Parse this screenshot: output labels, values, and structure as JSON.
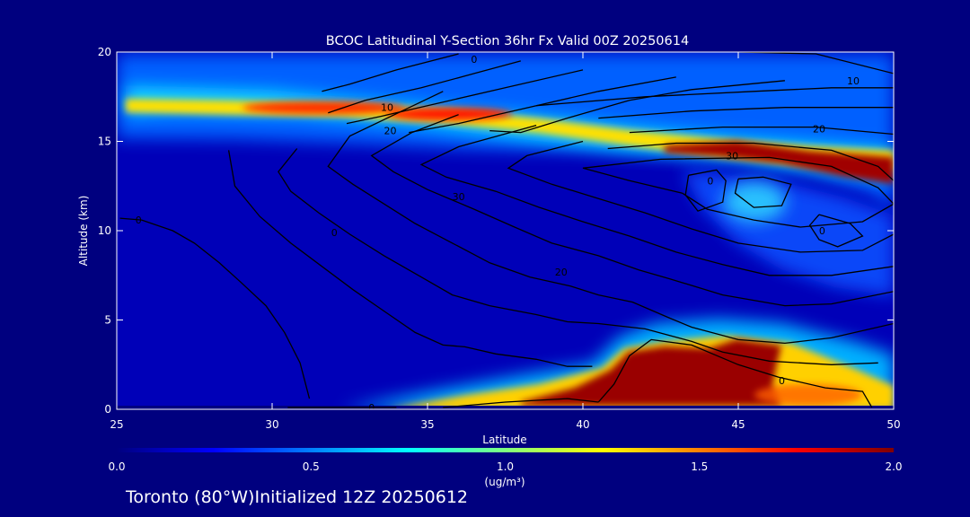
{
  "chart_data": {
    "type": "heatmap",
    "title": "BCOC Latitudinal Y-Section 36hr  Fx Valid 00Z 20250614",
    "xlabel": "Latitude",
    "ylabel": "Altitude (km)",
    "xlim": [
      25,
      50
    ],
    "ylim": [
      0,
      20
    ],
    "x_ticks": [
      "25",
      "30",
      "35",
      "40",
      "45",
      "50"
    ],
    "y_ticks": [
      "0",
      "5",
      "10",
      "15",
      "20"
    ],
    "colorbar": {
      "ticks": [
        "0.0",
        "0.5",
        "1.0",
        "1.5",
        "2.0"
      ],
      "range": [
        0,
        2
      ],
      "unit": "(ug/m³)"
    },
    "concentration_features": [
      {
        "lat": 31.5,
        "alt": 17.8,
        "value": 1.2
      },
      {
        "lat": 34.5,
        "alt": 16.9,
        "value": 1.7
      },
      {
        "lat": 37.5,
        "alt": 16.2,
        "value": 1.6
      },
      {
        "lat": 42.5,
        "alt": 15.3,
        "value": 1.2
      },
      {
        "lat": 46.5,
        "alt": 14.5,
        "value": 2.0
      },
      {
        "lat": 49.5,
        "alt": 13.3,
        "value": 2.0
      },
      {
        "lat": 43.5,
        "alt": 2.8,
        "value": 2.0
      },
      {
        "lat": 45.5,
        "alt": 1.8,
        "value": 2.0
      },
      {
        "lat": 41.2,
        "alt": 1.0,
        "value": 1.8
      },
      {
        "lat": 38.5,
        "alt": 0.6,
        "value": 1.2
      },
      {
        "lat": 36.0,
        "alt": 0.35,
        "value": 0.9
      },
      {
        "lat": 48.5,
        "alt": 1.0,
        "value": 1.2
      },
      {
        "lat": 41.7,
        "alt": 4.3,
        "value": 0.8
      },
      {
        "lat": 44.5,
        "alt": 11.5,
        "value": 0.85
      }
    ],
    "contour_labels": [
      {
        "text": "0",
        "lat": 36.5,
        "alt": 19.6
      },
      {
        "text": "10",
        "lat": 48.7,
        "alt": 18.4
      },
      {
        "text": "10",
        "lat": 33.7,
        "alt": 16.9
      },
      {
        "text": "20",
        "lat": 33.8,
        "alt": 15.6
      },
      {
        "text": "20",
        "lat": 47.6,
        "alt": 15.7
      },
      {
        "text": "30",
        "lat": 44.8,
        "alt": 14.2
      },
      {
        "text": "30",
        "lat": 36.0,
        "alt": 11.9
      },
      {
        "text": "20",
        "lat": 39.3,
        "alt": 7.7
      },
      {
        "text": "0",
        "lat": 44.1,
        "alt": 12.8
      },
      {
        "text": "0",
        "lat": 47.7,
        "alt": 10.0
      },
      {
        "text": "0",
        "lat": 25.7,
        "alt": 10.6
      },
      {
        "text": "0",
        "lat": 32.0,
        "alt": 9.9
      },
      {
        "text": "0",
        "lat": 46.4,
        "alt": 1.6
      },
      {
        "text": "0",
        "lat": 33.2,
        "alt": 0.1
      }
    ],
    "contours": [
      [
        [
          25.1,
          10.7
        ],
        [
          25.8,
          10.6
        ],
        [
          26.8,
          10.0
        ],
        [
          27.5,
          9.3
        ],
        [
          28.3,
          8.2
        ],
        [
          29.0,
          7.1
        ],
        [
          29.8,
          5.8
        ],
        [
          30.4,
          4.3
        ],
        [
          30.9,
          2.6
        ],
        [
          31.2,
          0.6
        ]
      ],
      [
        [
          28.6,
          14.5
        ],
        [
          28.8,
          12.5
        ],
        [
          29.6,
          10.8
        ],
        [
          30.6,
          9.3
        ],
        [
          31.6,
          8.0
        ],
        [
          32.6,
          6.7
        ],
        [
          33.6,
          5.5
        ],
        [
          34.6,
          4.3
        ],
        [
          35.5,
          3.6
        ],
        [
          36.2,
          3.5
        ],
        [
          37.2,
          3.1
        ],
        [
          38.5,
          2.8
        ],
        [
          39.5,
          2.4
        ],
        [
          40.3,
          2.4
        ]
      ],
      [
        [
          30.8,
          14.6
        ],
        [
          30.2,
          13.3
        ],
        [
          30.6,
          12.2
        ],
        [
          31.5,
          11.0
        ],
        [
          32.5,
          9.8
        ],
        [
          33.6,
          8.6
        ],
        [
          34.8,
          7.4
        ],
        [
          35.8,
          6.4
        ],
        [
          37.0,
          5.8
        ],
        [
          38.5,
          5.3
        ],
        [
          39.5,
          4.9
        ],
        [
          40.5,
          4.8
        ],
        [
          42.0,
          4.5
        ],
        [
          43.5,
          3.8
        ],
        [
          44.5,
          3.2
        ],
        [
          46.0,
          2.7
        ],
        [
          48.0,
          2.5
        ],
        [
          49.5,
          2.6
        ]
      ],
      [
        [
          35.5,
          17.8
        ],
        [
          32.5,
          15.3
        ],
        [
          31.8,
          13.6
        ],
        [
          32.6,
          12.6
        ],
        [
          33.6,
          11.5
        ],
        [
          34.6,
          10.4
        ],
        [
          35.8,
          9.3
        ],
        [
          37.0,
          8.2
        ],
        [
          38.3,
          7.4
        ],
        [
          39.6,
          6.9
        ],
        [
          40.5,
          6.4
        ],
        [
          41.6,
          6.0
        ],
        [
          42.8,
          5.1
        ],
        [
          43.5,
          4.6
        ],
        [
          45.0,
          3.9
        ],
        [
          46.5,
          3.7
        ],
        [
          48.0,
          4.0
        ],
        [
          50.0,
          4.8
        ]
      ],
      [
        [
          36.0,
          16.5
        ],
        [
          34.5,
          15.5
        ],
        [
          33.2,
          14.2
        ],
        [
          33.9,
          13.3
        ],
        [
          35.0,
          12.3
        ],
        [
          36.5,
          11.2
        ],
        [
          37.8,
          10.2
        ],
        [
          39.0,
          9.3
        ],
        [
          40.5,
          8.6
        ],
        [
          41.8,
          7.8
        ],
        [
          42.8,
          7.3
        ],
        [
          44.5,
          6.4
        ],
        [
          46.5,
          5.8
        ],
        [
          48.0,
          5.9
        ],
        [
          50.0,
          6.6
        ]
      ],
      [
        [
          38.5,
          15.9
        ],
        [
          36.0,
          14.7
        ],
        [
          34.8,
          13.7
        ],
        [
          35.6,
          13.0
        ],
        [
          37.2,
          12.2
        ],
        [
          38.6,
          11.3
        ],
        [
          40.0,
          10.5
        ],
        [
          41.5,
          9.7
        ],
        [
          43.0,
          8.8
        ],
        [
          44.5,
          8.1
        ],
        [
          46.0,
          7.5
        ],
        [
          48.0,
          7.5
        ],
        [
          50.0,
          8.0
        ]
      ],
      [
        [
          40.0,
          15.0
        ],
        [
          38.2,
          14.2
        ],
        [
          37.6,
          13.5
        ],
        [
          39.0,
          12.6
        ],
        [
          40.5,
          11.8
        ],
        [
          42.0,
          11.0
        ],
        [
          43.5,
          10.1
        ],
        [
          45.0,
          9.3
        ],
        [
          47.0,
          8.8
        ],
        [
          49.0,
          8.9
        ],
        [
          50.0,
          9.8
        ]
      ],
      [
        [
          42.5,
          14.0
        ],
        [
          40.0,
          13.5
        ],
        [
          41.5,
          12.8
        ],
        [
          43.2,
          12.1
        ],
        [
          44.0,
          11.2
        ],
        [
          45.5,
          10.6
        ],
        [
          47.0,
          10.2
        ],
        [
          49.0,
          10.5
        ],
        [
          50.0,
          11.5
        ]
      ],
      [
        [
          43.4,
          13.1
        ],
        [
          44.3,
          13.4
        ],
        [
          44.6,
          12.8
        ],
        [
          44.5,
          11.6
        ],
        [
          43.7,
          11.1
        ],
        [
          43.3,
          12.0
        ],
        [
          43.4,
          13.1
        ]
      ],
      [
        [
          47.6,
          10.9
        ],
        [
          48.6,
          10.4
        ],
        [
          49.0,
          9.7
        ],
        [
          48.2,
          9.1
        ],
        [
          47.6,
          9.5
        ],
        [
          47.3,
          10.3
        ],
        [
          47.6,
          10.9
        ]
      ],
      [
        [
          45.0,
          12.9
        ],
        [
          44.9,
          12.1
        ],
        [
          45.5,
          11.3
        ],
        [
          46.4,
          11.4
        ],
        [
          46.7,
          12.6
        ],
        [
          45.8,
          13.0
        ],
        [
          45.0,
          12.9
        ]
      ],
      [
        [
          36.0,
          19.9
        ],
        [
          34.0,
          19.0
        ],
        [
          32.5,
          18.2
        ],
        [
          31.6,
          17.8
        ]
      ],
      [
        [
          38.0,
          19.5
        ],
        [
          36.5,
          18.8
        ],
        [
          34.8,
          18.0
        ],
        [
          33.0,
          17.3
        ],
        [
          31.8,
          16.6
        ]
      ],
      [
        [
          40.0,
          19.0
        ],
        [
          37.5,
          18.0
        ],
        [
          35.0,
          17.0
        ],
        [
          33.5,
          16.4
        ],
        [
          32.4,
          16.0
        ]
      ],
      [
        [
          43.0,
          18.6
        ],
        [
          40.5,
          17.8
        ],
        [
          38.0,
          16.8
        ],
        [
          36.0,
          16.0
        ],
        [
          34.4,
          15.5
        ]
      ],
      [
        [
          46.5,
          18.4
        ],
        [
          43.5,
          17.9
        ],
        [
          41.5,
          17.3
        ],
        [
          39.5,
          16.3
        ],
        [
          38.0,
          15.5
        ],
        [
          37.0,
          15.6
        ]
      ],
      [
        [
          45.0,
          20.0
        ],
        [
          47.5,
          19.9
        ],
        [
          50.0,
          18.8
        ]
      ],
      [
        [
          38.5,
          17.0
        ],
        [
          42.0,
          17.5
        ],
        [
          45.5,
          17.8
        ],
        [
          48.0,
          18.0
        ],
        [
          50.0,
          18.0
        ]
      ],
      [
        [
          40.5,
          16.3
        ],
        [
          43.5,
          16.7
        ],
        [
          46.5,
          16.9
        ],
        [
          50.0,
          16.9
        ]
      ],
      [
        [
          41.5,
          15.5
        ],
        [
          44.5,
          15.8
        ],
        [
          47.5,
          15.8
        ],
        [
          50.0,
          15.4
        ]
      ],
      [
        [
          40.8,
          14.6
        ],
        [
          43.0,
          14.9
        ],
        [
          45.5,
          14.9
        ],
        [
          48.0,
          14.5
        ],
        [
          49.5,
          13.6
        ],
        [
          50.0,
          12.8
        ]
      ],
      [
        [
          42.5,
          14.0
        ],
        [
          46.0,
          14.1
        ],
        [
          48.0,
          13.6
        ],
        [
          49.5,
          12.4
        ],
        [
          50.0,
          11.5
        ]
      ],
      [
        [
          40.5,
          0.4
        ],
        [
          41.0,
          1.4
        ],
        [
          41.5,
          3.0
        ],
        [
          42.2,
          3.9
        ],
        [
          43.5,
          3.6
        ],
        [
          45.0,
          2.5
        ],
        [
          46.3,
          1.8
        ],
        [
          47.8,
          1.2
        ],
        [
          49.0,
          1.0
        ],
        [
          49.3,
          0.1
        ]
      ],
      [
        [
          35.5,
          0.1
        ],
        [
          37.5,
          0.4
        ],
        [
          39.5,
          0.6
        ],
        [
          40.5,
          0.4
        ]
      ],
      [
        [
          30.5,
          0.1
        ],
        [
          34.0,
          0.1
        ]
      ]
    ]
  },
  "footer": {
    "caption": "Toronto (80°W)Initialized 12Z 20250612"
  }
}
